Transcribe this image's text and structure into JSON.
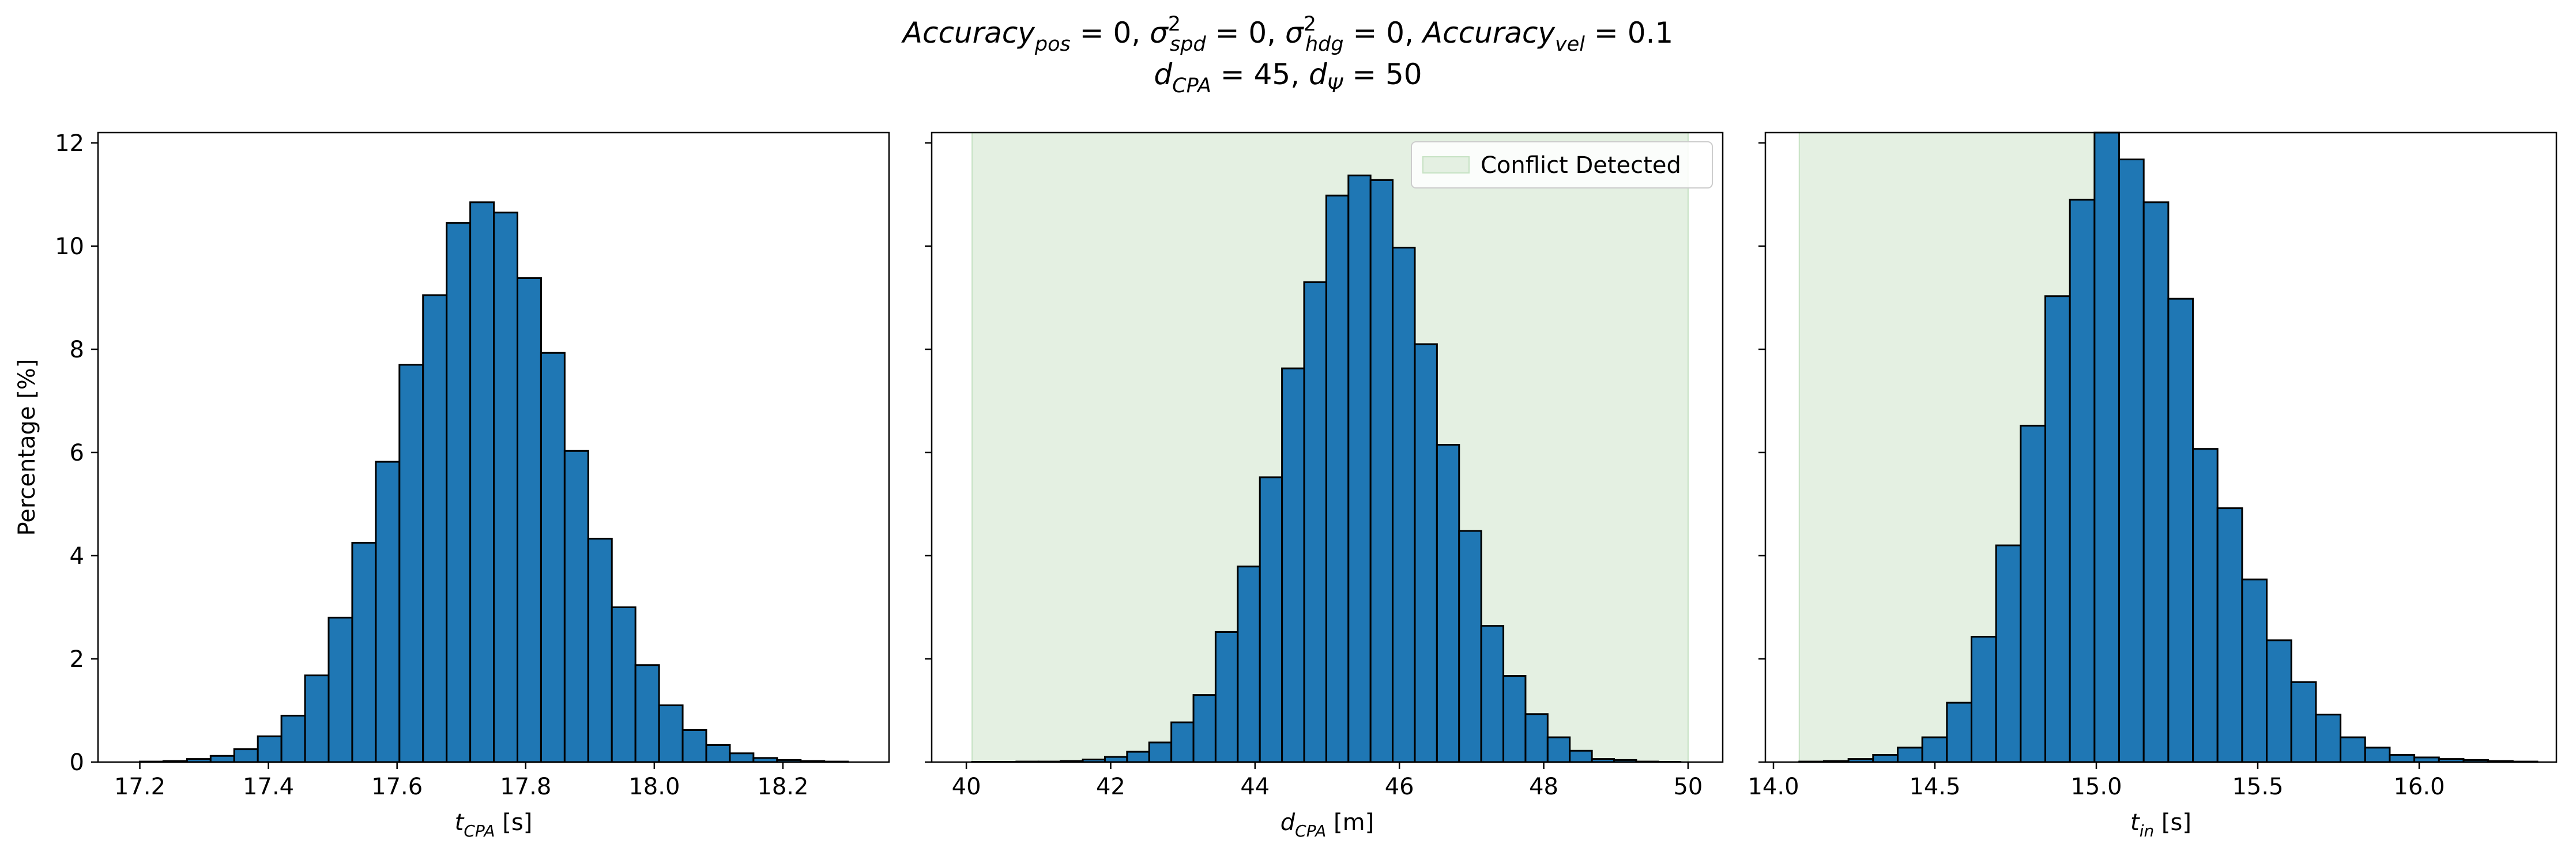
{
  "figure": {
    "title_lines": [
      [
        {
          "t": "Accuracy",
          "s": "italic"
        },
        {
          "t": "pos",
          "s": "sub"
        },
        {
          "t": " = 0, ",
          "s": "normal"
        },
        {
          "t": "σ",
          "s": "italic"
        },
        {
          "t": "2",
          "s": "sup"
        },
        {
          "t": "spd",
          "s": "subafter"
        },
        {
          "t": " = 0, ",
          "s": "normal"
        },
        {
          "t": "σ",
          "s": "italic"
        },
        {
          "t": "2",
          "s": "sup"
        },
        {
          "t": "hdg",
          "s": "subafter"
        },
        {
          "t": " = 0, ",
          "s": "normal"
        },
        {
          "t": "Accuracy",
          "s": "italic"
        },
        {
          "t": "vel",
          "s": "sub"
        },
        {
          "t": " = 0.1",
          "s": "normal"
        }
      ],
      [
        {
          "t": "d",
          "s": "italic"
        },
        {
          "t": "CPA",
          "s": "sub"
        },
        {
          "t": " = 45, ",
          "s": "normal"
        },
        {
          "t": "d",
          "s": "italic"
        },
        {
          "t": "Ψ",
          "s": "sub"
        },
        {
          "t": " = 50",
          "s": "normal"
        }
      ]
    ],
    "colors": {
      "bar_fill": "#1f77b4",
      "bar_edge": "#000000",
      "region_fill": "#e4f0e2",
      "region_edge": "#c6e2c3"
    }
  },
  "chart_data": [
    {
      "type": "bar",
      "xlabel_parts": [
        {
          "t": "t",
          "s": "italic"
        },
        {
          "t": "CPA",
          "s": "sub"
        },
        {
          "t": " [s]",
          "s": "normal"
        }
      ],
      "ylabel": "Percentage [%]",
      "xlim": [
        17.135,
        18.365
      ],
      "ylim": [
        0,
        12.2
      ],
      "xticks": [
        "17.2",
        "17.4",
        "17.6",
        "17.8",
        "18.0",
        "18.2"
      ],
      "yticks": [
        "0",
        "2",
        "4",
        "6",
        "8",
        "10",
        "12"
      ],
      "bin_start": 17.2,
      "bin_width": 0.0367,
      "values": [
        0.01,
        0.02,
        0.06,
        0.12,
        0.25,
        0.5,
        0.9,
        1.68,
        2.8,
        4.25,
        5.82,
        7.7,
        9.05,
        10.45,
        10.85,
        10.65,
        9.38,
        7.93,
        6.03,
        4.33,
        3.0,
        1.88,
        1.1,
        0.62,
        0.33,
        0.17,
        0.08,
        0.04,
        0.02,
        0.01
      ],
      "shaded_region": null,
      "legend": null,
      "grid": false
    },
    {
      "type": "bar",
      "xlabel_parts": [
        {
          "t": "d",
          "s": "italic"
        },
        {
          "t": "CPA",
          "s": "sub"
        },
        {
          "t": " [m]",
          "s": "normal"
        }
      ],
      "ylabel": "",
      "xlim": [
        39.52,
        50.48
      ],
      "ylim": [
        0,
        12.2
      ],
      "xticks": [
        "40",
        "42",
        "44",
        "46",
        "48",
        "50"
      ],
      "yticks": [
        "0",
        "2",
        "4",
        "6",
        "8",
        "10",
        "12"
      ],
      "bin_start": 40.08,
      "bin_width": 0.3067,
      "values": [
        0.005,
        0.005,
        0.01,
        0.01,
        0.02,
        0.05,
        0.1,
        0.2,
        0.38,
        0.77,
        1.3,
        2.52,
        3.79,
        5.52,
        7.63,
        9.3,
        10.98,
        11.37,
        11.28,
        9.97,
        8.1,
        6.15,
        4.48,
        2.64,
        1.67,
        0.93,
        0.48,
        0.22,
        0.06,
        0.04,
        0.01,
        0.005
      ],
      "shaded_region": [
        40.08,
        50.0
      ],
      "legend": {
        "label": "Conflict Detected",
        "placement": "top-right"
      },
      "grid": false
    },
    {
      "type": "bar",
      "xlabel_parts": [
        {
          "t": "t",
          "s": "italic"
        },
        {
          "t": "in",
          "s": "sub"
        },
        {
          "t": " [s]",
          "s": "normal"
        }
      ],
      "ylabel": "",
      "xlim": [
        13.975,
        16.425
      ],
      "ylim": [
        0,
        12.2
      ],
      "xticks": [
        "14.0",
        "14.5",
        "15.0",
        "15.5",
        "16.0"
      ],
      "yticks": [
        "0",
        "2",
        "4",
        "6",
        "8",
        "10",
        "12"
      ],
      "bin_start": 14.08,
      "bin_width": 0.0762,
      "values": [
        0.01,
        0.02,
        0.06,
        0.14,
        0.28,
        0.48,
        1.15,
        2.43,
        4.2,
        6.52,
        9.03,
        10.9,
        12.25,
        11.68,
        10.85,
        8.98,
        6.07,
        4.92,
        3.54,
        2.36,
        1.55,
        0.92,
        0.48,
        0.28,
        0.14,
        0.09,
        0.06,
        0.04,
        0.02,
        0.01
      ],
      "shaded_region": [
        14.08,
        15.0
      ],
      "legend": null,
      "grid": false
    }
  ]
}
